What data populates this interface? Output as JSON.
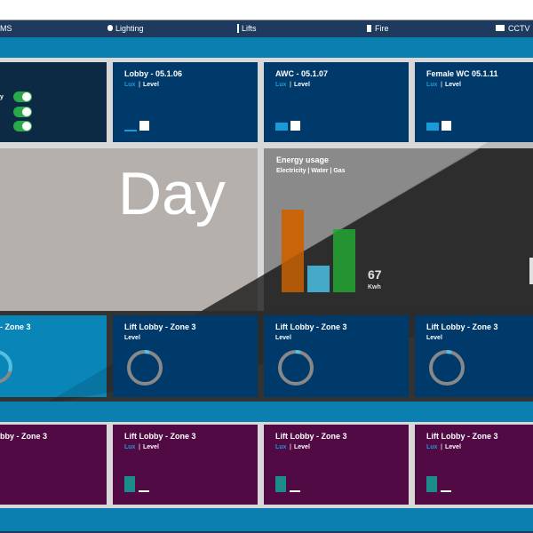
{
  "nav": [
    "MS",
    "Lighting",
    "Lifts",
    "Fire",
    "CCTV"
  ],
  "row1_first": {
    "label": "y"
  },
  "row1": [
    {
      "title": "Lobby - 05.1.06",
      "lux": "Lux",
      "sep": "|",
      "level": "Level"
    },
    {
      "title": "AWC - 05.1.07",
      "lux": "Lux",
      "sep": "|",
      "level": "Level"
    },
    {
      "title": "Female WC 05.1.11",
      "lux": "Lux",
      "sep": "|",
      "level": "Level"
    }
  ],
  "day": {
    "label": "Day"
  },
  "energy": {
    "title": "Energy usage",
    "subtitle": "Electricity | Water | Gas",
    "value": 67,
    "unit": "Kwh"
  },
  "row3_first": {
    "title": "- Zone 3"
  },
  "row3": [
    {
      "title": "Lift Lobby - Zone 3",
      "level": "Level"
    },
    {
      "title": "Lift Lobby - Zone 3",
      "level": "Level"
    },
    {
      "title": "Lift Lobby - Zone 3",
      "level": "Level"
    }
  ],
  "row4_first": {
    "title": "bby - Zone 3"
  },
  "row4": [
    {
      "title": "Lift Lobby - Zone 3",
      "lux": "Lux",
      "sep": "|",
      "level": "Level"
    },
    {
      "title": "Lift Lobby - Zone 3",
      "lux": "Lux",
      "sep": "|",
      "level": "Level"
    },
    {
      "title": "Lift Lobby - Zone 3",
      "lux": "Lux",
      "sep": "|",
      "level": "Level"
    }
  ]
}
